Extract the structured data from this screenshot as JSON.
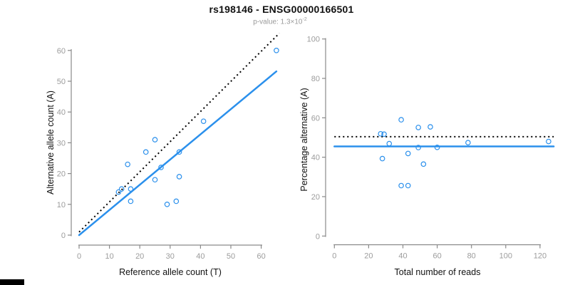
{
  "header": {
    "title": "rs198146 - ENSG00000166501",
    "subtitle_prefix": "p-value: ",
    "subtitle_value": "1.3×10",
    "subtitle_exponent": "-2"
  },
  "colors": {
    "accent_blue": "#2B90EC",
    "axis_line": "#8a8a8a",
    "tick_label": "#9c9c9c",
    "axis_title": "#111111",
    "expected_line": "#000000"
  },
  "chart_data": [
    {
      "type": "scatter",
      "xlabel": "Reference allele count (T)",
      "ylabel": "Alternative allele count (A)",
      "xlim": [
        0,
        60
      ],
      "ylim": [
        0,
        60
      ],
      "xticks": [
        0,
        10,
        20,
        30,
        40,
        50,
        60
      ],
      "yticks": [
        0,
        10,
        20,
        30,
        40,
        50,
        60
      ],
      "grid": false,
      "points": [
        [
          13,
          14
        ],
        [
          14,
          15
        ],
        [
          17,
          15
        ],
        [
          17,
          11
        ],
        [
          16,
          23
        ],
        [
          22,
          27
        ],
        [
          25,
          31
        ],
        [
          25,
          18
        ],
        [
          27,
          22
        ],
        [
          29,
          10
        ],
        [
          32,
          11
        ],
        [
          33,
          27
        ],
        [
          33,
          19
        ],
        [
          41,
          37
        ],
        [
          65,
          60
        ]
      ],
      "lines": [
        {
          "name": "expected-50pct-line",
          "style": "dotted",
          "color": "#000000",
          "from": [
            0,
            1
          ],
          "to": [
            66,
            65.6
          ]
        },
        {
          "name": "fitted-line",
          "style": "solid",
          "color": "#2B90EC",
          "from": [
            0,
            0
          ],
          "to": [
            65,
            53.2
          ]
        }
      ]
    },
    {
      "type": "scatter",
      "xlabel": "Total number of reads",
      "ylabel": "Percentage alternative (A)",
      "xlim": [
        0,
        120
      ],
      "ylim": [
        0,
        100
      ],
      "xticks": [
        0,
        20,
        40,
        60,
        80,
        100,
        120
      ],
      "yticks": [
        0,
        20,
        40,
        60,
        80,
        100
      ],
      "grid": false,
      "points": [
        [
          27,
          51.9
        ],
        [
          29,
          51.7
        ],
        [
          32,
          46.9
        ],
        [
          28,
          39.3
        ],
        [
          39,
          59.0
        ],
        [
          49,
          55.1
        ],
        [
          56,
          55.4
        ],
        [
          49,
          44.9
        ],
        [
          43,
          41.9
        ],
        [
          52,
          36.5
        ],
        [
          60,
          45.0
        ],
        [
          39,
          25.6
        ],
        [
          43,
          25.6
        ],
        [
          78,
          47.4
        ],
        [
          125,
          48.0
        ]
      ],
      "lines": [
        {
          "name": "expected-50pct-line",
          "style": "dotted",
          "color": "#000000",
          "from": [
            0,
            50.4
          ],
          "to": [
            128,
            50.4
          ]
        },
        {
          "name": "fitted-line",
          "style": "solid",
          "color": "#2B90EC",
          "from": [
            0,
            45.5
          ],
          "to": [
            128,
            45.5
          ]
        }
      ]
    }
  ]
}
